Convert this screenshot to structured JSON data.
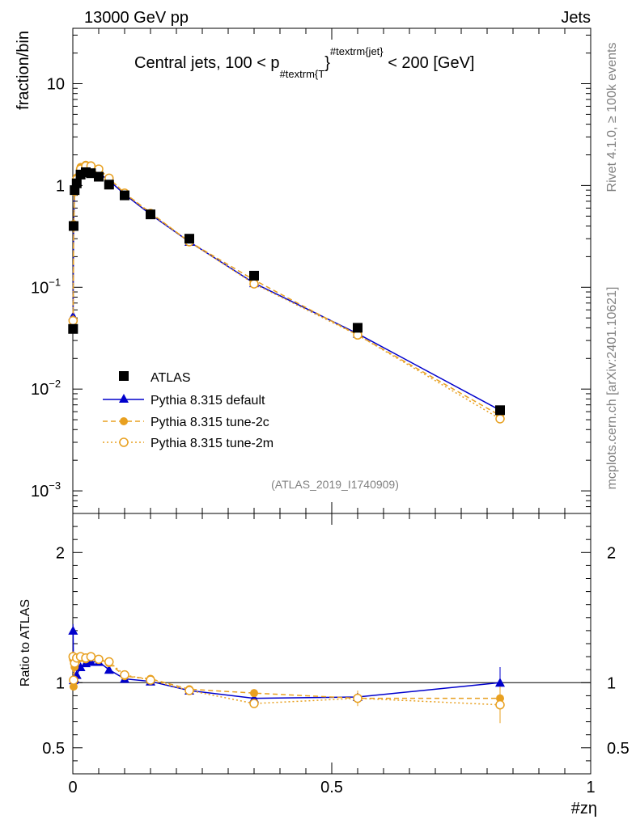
{
  "header": {
    "left": "13000 GeV pp",
    "right": "Jets"
  },
  "side_labels": {
    "rivet": "Rivet 4.1.0, ≥ 100k events",
    "mcplots": "mcplots.cern.ch [arXiv:2401.10621]"
  },
  "analysis_id": "(ATLAS_2019_I1740909)",
  "colors": {
    "atlas": "#000000",
    "default": "#0000cc",
    "tune2c": "#e8a020",
    "tune2m": "#e8a020"
  },
  "chart_data": [
    {
      "type": "scatter",
      "panel": "main",
      "title_parts": {
        "prefix": "Central jets, 100 < p",
        "sub": "#textrm{T",
        "brace": "}",
        "sup": "#textrm{jet}",
        "suffix": " < 200 [GeV]"
      },
      "ylabel": "fraction/bin",
      "yscale": "log",
      "ylim": [
        0.0006,
        35
      ],
      "xlim": [
        0,
        1
      ],
      "yticks": [
        {
          "value": 10,
          "label": "10",
          "exp": ""
        },
        {
          "value": 1,
          "label": "1",
          "exp": ""
        },
        {
          "value": 0.1,
          "label": "10",
          "exp": "−1"
        },
        {
          "value": 0.01,
          "label": "10",
          "exp": "−2"
        },
        {
          "value": 0.001,
          "label": "10",
          "exp": "−3"
        }
      ],
      "legend": [
        "ATLAS",
        "Pythia 8.315 default",
        "Pythia 8.315 tune-2c",
        "Pythia 8.315 tune-2m"
      ],
      "series": [
        {
          "name": "ATLAS",
          "marker": "square",
          "x": [
            0.0005,
            0.0015,
            0.0035,
            0.0075,
            0.015,
            0.025,
            0.035,
            0.05,
            0.07,
            0.1,
            0.15,
            0.225,
            0.35,
            0.55,
            0.825
          ],
          "y": [
            0.039,
            0.4,
            0.9,
            1.05,
            1.28,
            1.35,
            1.32,
            1.22,
            1.02,
            0.8,
            0.52,
            0.3,
            0.13,
            0.04,
            0.0062
          ]
        },
        {
          "name": "Pythia 8.315 default",
          "marker": "triangle",
          "x": [
            0.0005,
            0.0015,
            0.0035,
            0.0075,
            0.015,
            0.025,
            0.035,
            0.05,
            0.07,
            0.1,
            0.15,
            0.225,
            0.35,
            0.55,
            0.825
          ],
          "y": [
            0.052,
            0.4,
            0.92,
            1.1,
            1.35,
            1.42,
            1.42,
            1.32,
            1.12,
            0.82,
            0.52,
            0.28,
            0.11,
            0.035,
            0.0062
          ]
        },
        {
          "name": "Pythia 8.315 tune-2c",
          "marker": "circle-filled",
          "x": [
            0.0005,
            0.0015,
            0.0035,
            0.0075,
            0.015,
            0.025,
            0.035,
            0.05,
            0.07,
            0.1,
            0.15,
            0.225,
            0.35,
            0.55,
            0.825
          ],
          "y": [
            0.046,
            0.39,
            0.86,
            1.2,
            1.52,
            1.6,
            1.58,
            1.45,
            1.18,
            0.84,
            0.54,
            0.28,
            0.118,
            0.034,
            0.0055
          ]
        },
        {
          "name": "Pythia 8.315 tune-2m",
          "marker": "circle-open",
          "x": [
            0.0005,
            0.0015,
            0.0035,
            0.0075,
            0.015,
            0.025,
            0.035,
            0.05,
            0.07,
            0.1,
            0.15,
            0.225,
            0.35,
            0.55,
            0.825
          ],
          "y": [
            0.047,
            0.41,
            0.9,
            1.15,
            1.45,
            1.55,
            1.55,
            1.45,
            1.18,
            0.84,
            0.53,
            0.28,
            0.108,
            0.034,
            0.0051
          ]
        }
      ]
    },
    {
      "type": "scatter",
      "panel": "ratio",
      "ylabel": "Ratio to ATLAS",
      "xlabel": "#zη",
      "ylim": [
        0.3,
        2.3
      ],
      "xlim": [
        0,
        1
      ],
      "yticks": [
        {
          "value": 2,
          "label": "2"
        },
        {
          "value": 1,
          "label": "1"
        },
        {
          "value": 0.5,
          "label": "0.5"
        }
      ],
      "xticks": [
        {
          "value": 0,
          "label": "0"
        },
        {
          "value": 0.5,
          "label": "0.5"
        },
        {
          "value": 1,
          "label": "1"
        }
      ],
      "series": [
        {
          "name": "Pythia 8.315 default",
          "marker": "triangle",
          "x": [
            0.0005,
            0.0015,
            0.0035,
            0.0075,
            0.015,
            0.025,
            0.035,
            0.05,
            0.07,
            0.1,
            0.15,
            0.225,
            0.35,
            0.55,
            0.825
          ],
          "y": [
            1.4,
            1.02,
            1.03,
            1.06,
            1.12,
            1.15,
            1.16,
            1.16,
            1.1,
            1.03,
            1.01,
            0.94,
            0.88,
            0.89,
            1.0
          ],
          "err": [
            0.05,
            0.04,
            0.03,
            0.03,
            0.02,
            0.02,
            0.02,
            0.02,
            0.02,
            0.02,
            0.02,
            0.02,
            0.02,
            0.05,
            0.12
          ]
        },
        {
          "name": "Pythia 8.315 tune-2c",
          "marker": "circle-filled",
          "x": [
            0.0005,
            0.0015,
            0.0035,
            0.0075,
            0.015,
            0.025,
            0.035,
            0.05,
            0.07,
            0.1,
            0.15,
            0.225,
            0.35,
            0.55,
            0.825
          ],
          "y": [
            1.18,
            0.97,
            1.12,
            1.17,
            1.19,
            1.18,
            1.2,
            1.18,
            1.15,
            1.05,
            1.03,
            0.95,
            0.92,
            0.88,
            0.88
          ],
          "err": [
            0.04,
            0.03,
            0.03,
            0.03,
            0.02,
            0.02,
            0.02,
            0.02,
            0.02,
            0.02,
            0.02,
            0.02,
            0.03,
            0.05,
            0.08
          ]
        },
        {
          "name": "Pythia 8.315 tune-2m",
          "marker": "circle-open",
          "x": [
            0.0005,
            0.0015,
            0.0035,
            0.0075,
            0.015,
            0.025,
            0.035,
            0.05,
            0.07,
            0.1,
            0.15,
            0.225,
            0.35,
            0.55,
            0.825
          ],
          "y": [
            1.2,
            1.02,
            1.15,
            1.19,
            1.2,
            1.19,
            1.2,
            1.18,
            1.16,
            1.06,
            1.02,
            0.94,
            0.84,
            0.88,
            0.83
          ],
          "err": [
            0.04,
            0.03,
            0.03,
            0.03,
            0.02,
            0.02,
            0.02,
            0.02,
            0.02,
            0.02,
            0.02,
            0.02,
            0.03,
            0.06,
            0.14
          ]
        }
      ]
    }
  ]
}
